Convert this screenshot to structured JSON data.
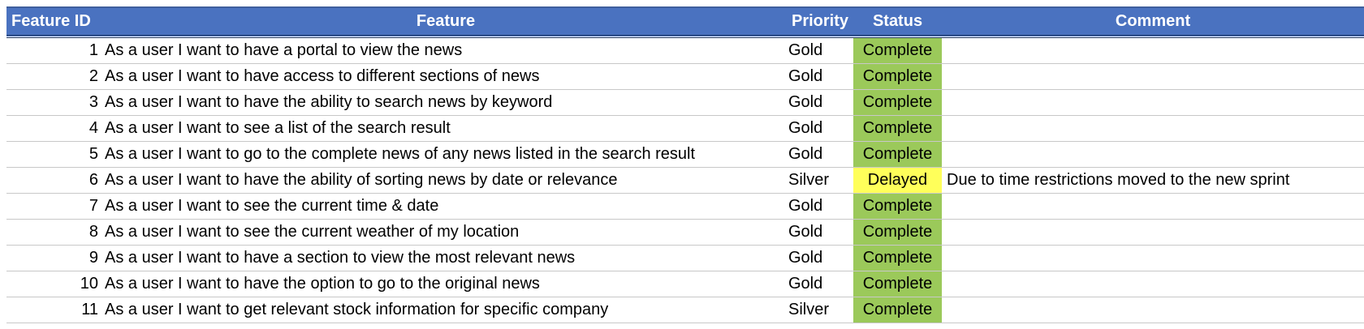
{
  "table": {
    "headers": {
      "feature_id": "Feature ID",
      "feature": "Feature",
      "priority": "Priority",
      "status": "Status",
      "comment": "Comment"
    },
    "rows": [
      {
        "id": "1",
        "feature": "As a user I want to have a portal to view the news",
        "priority": "Gold",
        "status": "Complete",
        "comment": ""
      },
      {
        "id": "2",
        "feature": "As a user I want to have access to different sections of news",
        "priority": "Gold",
        "status": "Complete",
        "comment": ""
      },
      {
        "id": "3",
        "feature": "As a user I want to have the ability to search news by keyword",
        "priority": "Gold",
        "status": "Complete",
        "comment": ""
      },
      {
        "id": "4",
        "feature": "As a user I want to see a list of the search result",
        "priority": "Gold",
        "status": "Complete",
        "comment": ""
      },
      {
        "id": "5",
        "feature": "As a user I want to go to the complete news of any news listed in the search result",
        "priority": "Gold",
        "status": "Complete",
        "comment": ""
      },
      {
        "id": "6",
        "feature": "As a user I want to have the ability of sorting news by date or relevance",
        "priority": "Silver",
        "status": "Delayed",
        "comment": "Due to time restrictions moved to the new sprint"
      },
      {
        "id": "7",
        "feature": "As a user I want to see the current time & date",
        "priority": "Gold",
        "status": "Complete",
        "comment": ""
      },
      {
        "id": "8",
        "feature": "As a user I want to see the current weather of my location",
        "priority": "Gold",
        "status": "Complete",
        "comment": ""
      },
      {
        "id": "9",
        "feature": "As a user I want to have a section to view the most relevant news",
        "priority": "Gold",
        "status": "Complete",
        "comment": ""
      },
      {
        "id": "10",
        "feature": "As a user I want to have the option to go to the original news",
        "priority": "Gold",
        "status": "Complete",
        "comment": ""
      },
      {
        "id": "11",
        "feature": "As a user I want to get relevant stock information for specific company",
        "priority": "Silver",
        "status": "Complete",
        "comment": ""
      }
    ]
  },
  "colors": {
    "header_bg": "#4a72c0",
    "header_text": "#ffffff",
    "status_complete": "#9bc95a",
    "status_delayed": "#ffff5a"
  }
}
